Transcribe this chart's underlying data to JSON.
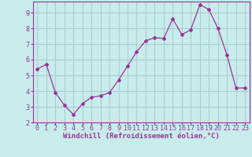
{
  "x": [
    0,
    1,
    2,
    3,
    4,
    5,
    6,
    7,
    8,
    9,
    10,
    11,
    12,
    13,
    14,
    15,
    16,
    17,
    18,
    19,
    20,
    21,
    22,
    23
  ],
  "y": [
    5.4,
    5.7,
    3.9,
    3.1,
    2.5,
    3.2,
    3.6,
    3.7,
    3.9,
    4.7,
    5.6,
    6.5,
    7.2,
    7.4,
    7.35,
    8.6,
    7.6,
    7.9,
    9.5,
    9.2,
    8.0,
    6.3,
    4.2,
    4.2
  ],
  "line_color": "#993399",
  "marker": "D",
  "marker_size": 2.0,
  "bg_color": "#c8ecec",
  "grid_color": "#aacece",
  "axis_color": "#993399",
  "tick_color": "#993399",
  "xlabel": "Windchill (Refroidissement éolien,°C)",
  "ylabel": "",
  "xlim": [
    -0.5,
    23.5
  ],
  "ylim": [
    2,
    9.7
  ],
  "yticks": [
    2,
    3,
    4,
    5,
    6,
    7,
    8,
    9
  ],
  "xticks": [
    0,
    1,
    2,
    3,
    4,
    5,
    6,
    7,
    8,
    9,
    10,
    11,
    12,
    13,
    14,
    15,
    16,
    17,
    18,
    19,
    20,
    21,
    22,
    23
  ],
  "tick_fontsize": 6,
  "label_fontsize": 6.5
}
